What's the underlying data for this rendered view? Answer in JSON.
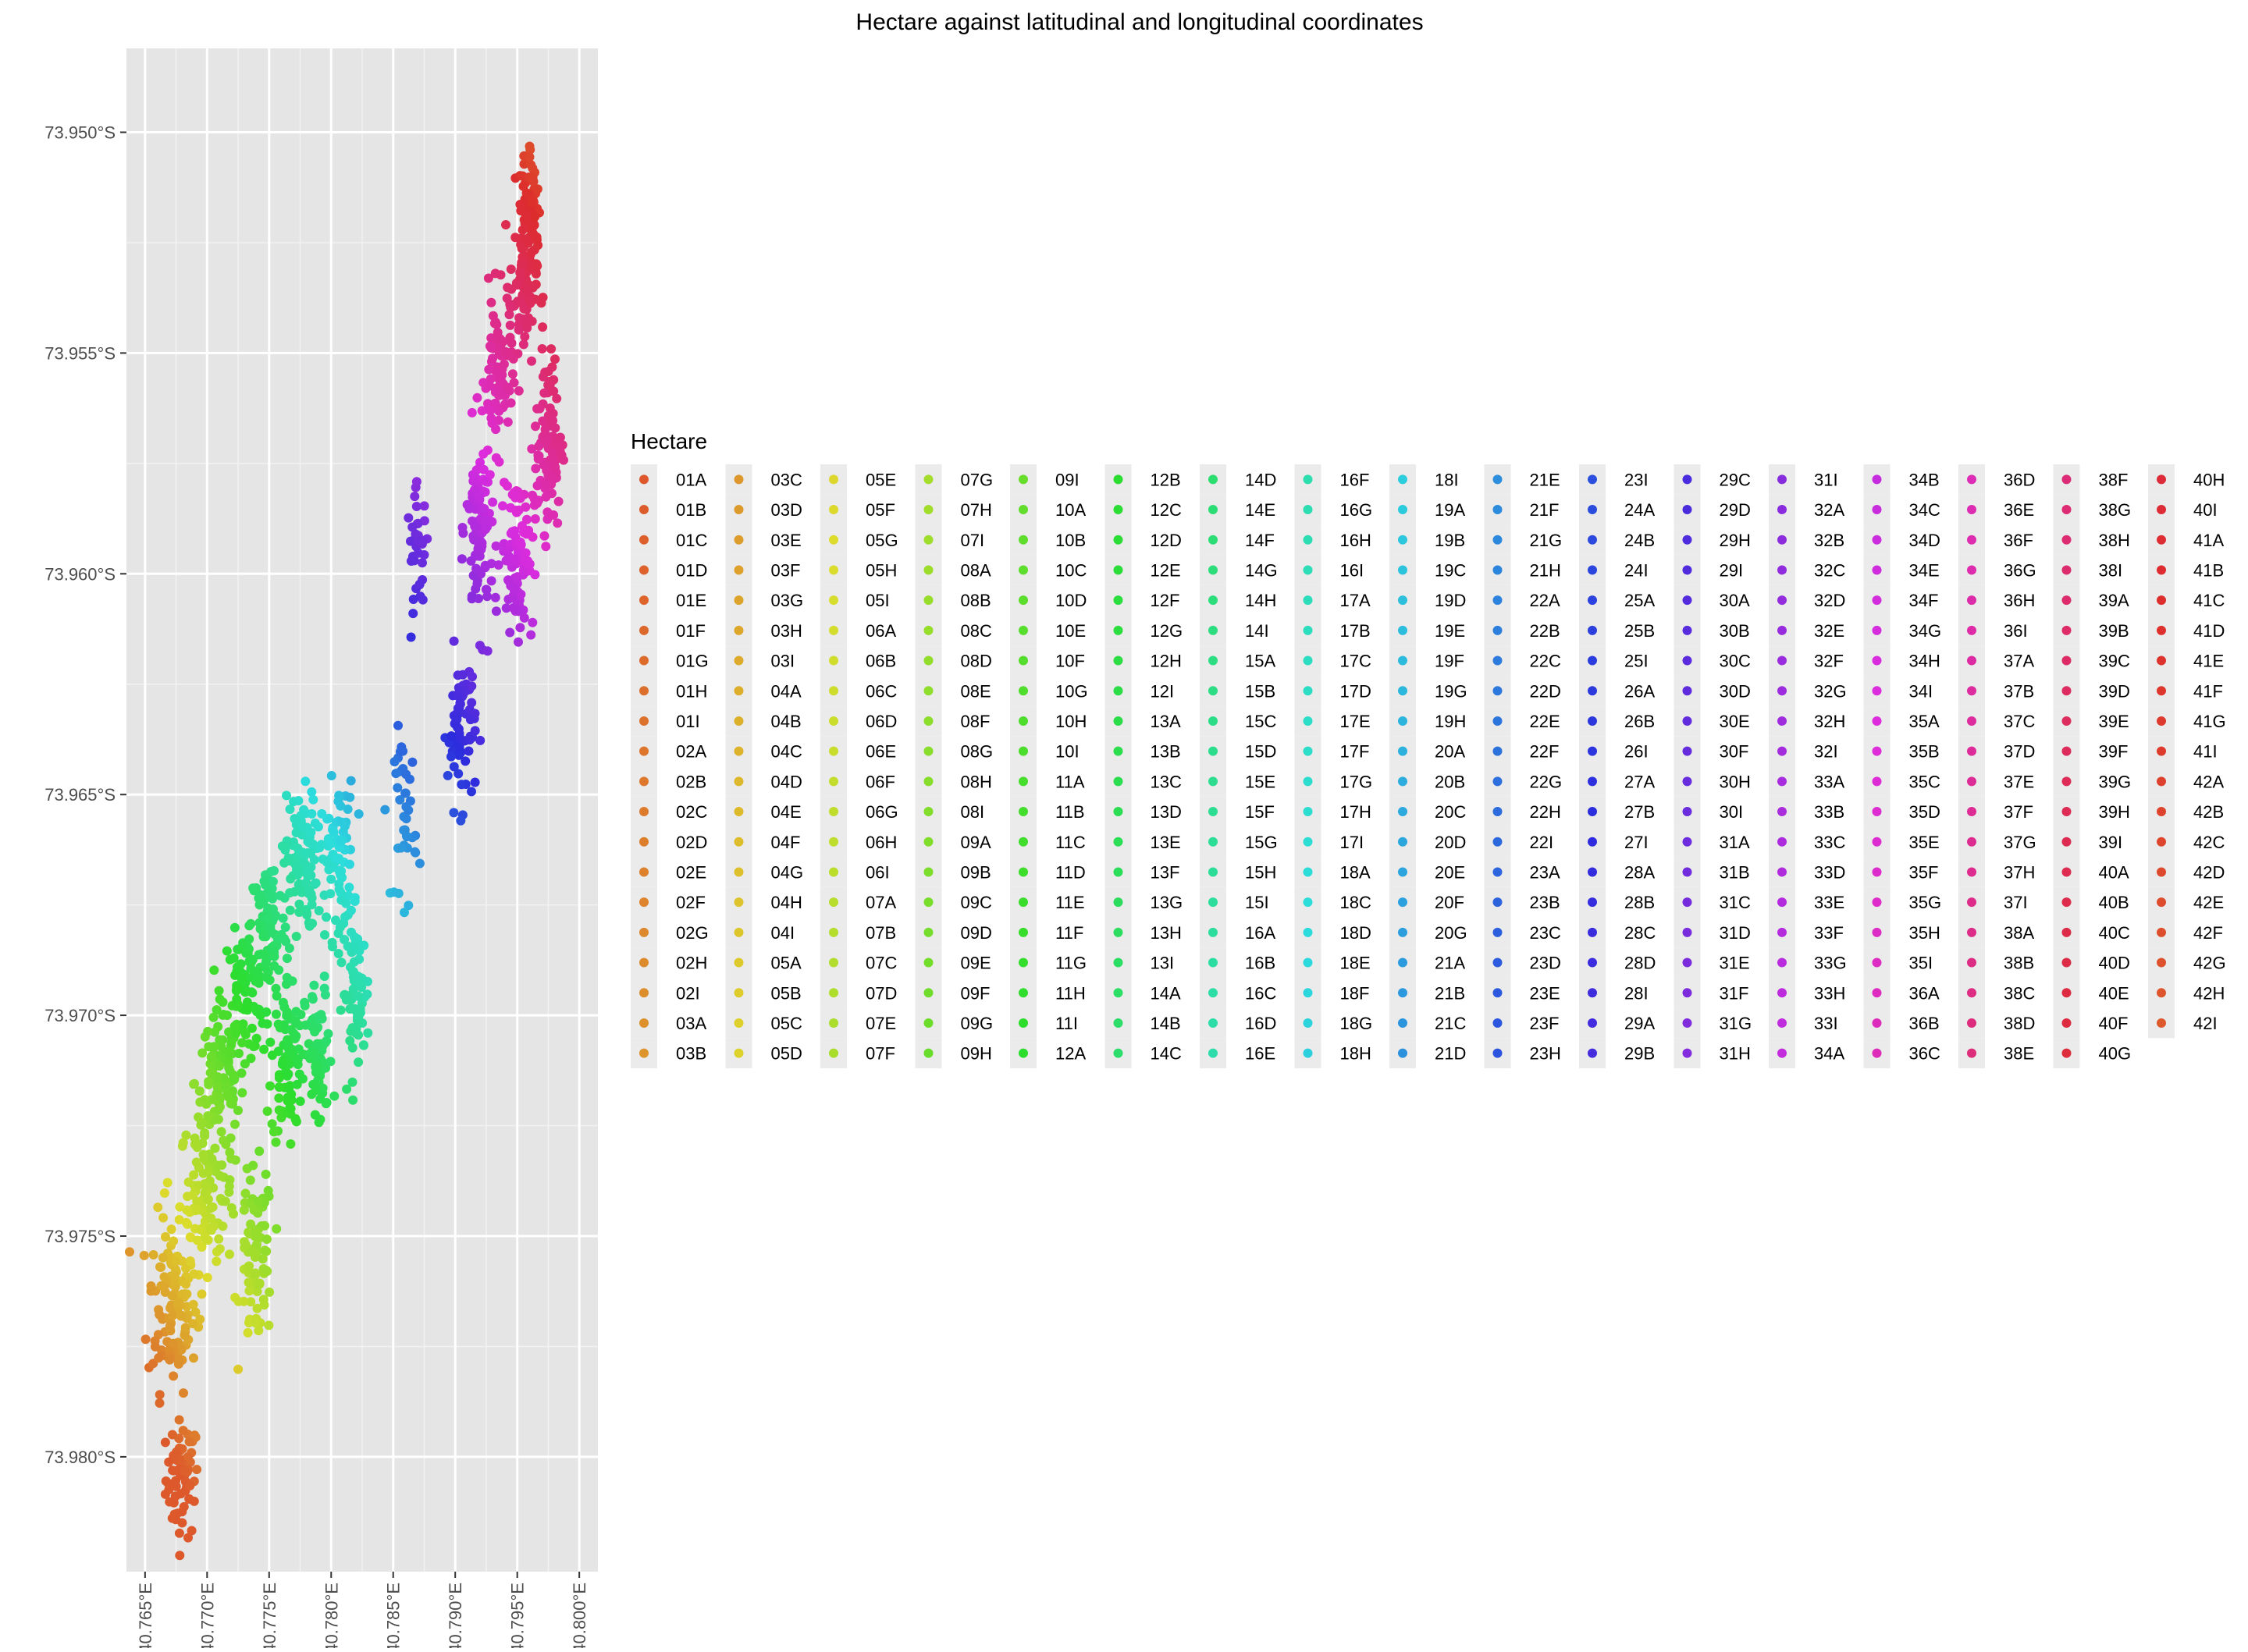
{
  "chart_data": {
    "type": "scatter",
    "title": "Hectare against latitudinal and longitudinal coordinates",
    "xlabel": "",
    "ylabel": "",
    "panel_background": "#e5e5e5",
    "grid_color": "#ffffff",
    "grid": true,
    "legend_position": "right",
    "xlim": [
      40.7635,
      40.8015
    ],
    "ylim": [
      -73.9826,
      -73.9481
    ],
    "x_ticks": [
      {
        "value": 40.765,
        "label": "40.765°E"
      },
      {
        "value": 40.77,
        "label": "40.770°E"
      },
      {
        "value": 40.775,
        "label": "40.775°E"
      },
      {
        "value": 40.78,
        "label": "40.780°E"
      },
      {
        "value": 40.785,
        "label": "40.785°E"
      },
      {
        "value": 40.79,
        "label": "40.790°E"
      },
      {
        "value": 40.795,
        "label": "40.795°E"
      },
      {
        "value": 40.8,
        "label": "40.800°E"
      }
    ],
    "y_ticks": [
      {
        "value": -73.95,
        "label": "73.950°S"
      },
      {
        "value": -73.955,
        "label": "73.955°S"
      },
      {
        "value": -73.96,
        "label": "73.960°S"
      },
      {
        "value": -73.965,
        "label": "73.965°S"
      },
      {
        "value": -73.97,
        "label": "73.970°S"
      },
      {
        "value": -73.975,
        "label": "73.975°S"
      },
      {
        "value": -73.98,
        "label": "73.980°S"
      }
    ],
    "legend": {
      "title": "Hectare",
      "rows_per_column": 20,
      "entries": [
        "01A",
        "01B",
        "01C",
        "01D",
        "01E",
        "01F",
        "01G",
        "01H",
        "01I",
        "02A",
        "02B",
        "02C",
        "02D",
        "02E",
        "02F",
        "02G",
        "02H",
        "02I",
        "03A",
        "03B",
        "03C",
        "03D",
        "03E",
        "03F",
        "03G",
        "03H",
        "03I",
        "04A",
        "04B",
        "04C",
        "04D",
        "04E",
        "04F",
        "04G",
        "04H",
        "04I",
        "05A",
        "05B",
        "05C",
        "05D",
        "05E",
        "05F",
        "05G",
        "05H",
        "05I",
        "06A",
        "06B",
        "06C",
        "06D",
        "06E",
        "06F",
        "06G",
        "06H",
        "06I",
        "07A",
        "07B",
        "07C",
        "07D",
        "07E",
        "07F",
        "07G",
        "07H",
        "07I",
        "08A",
        "08B",
        "08C",
        "08D",
        "08E",
        "08F",
        "08G",
        "08H",
        "08I",
        "09A",
        "09B",
        "09C",
        "09D",
        "09E",
        "09F",
        "09G",
        "09H",
        "09I",
        "10A",
        "10B",
        "10C",
        "10D",
        "10E",
        "10F",
        "10G",
        "10H",
        "10I",
        "11A",
        "11B",
        "11C",
        "11D",
        "11E",
        "11F",
        "11G",
        "11H",
        "11I",
        "12A",
        "12B",
        "12C",
        "12D",
        "12E",
        "12F",
        "12G",
        "12H",
        "12I",
        "13A",
        "13B",
        "13C",
        "13D",
        "13E",
        "13F",
        "13G",
        "13H",
        "13I",
        "14A",
        "14B",
        "14C",
        "14D",
        "14E",
        "14F",
        "14G",
        "14H",
        "14I",
        "15A",
        "15B",
        "15C",
        "15D",
        "15E",
        "15F",
        "15G",
        "15H",
        "15I",
        "16A",
        "16B",
        "16C",
        "16D",
        "16E",
        "16F",
        "16G",
        "16H",
        "16I",
        "17A",
        "17B",
        "17C",
        "17D",
        "17E",
        "17F",
        "17G",
        "17H",
        "17I",
        "18A",
        "18C",
        "18D",
        "18E",
        "18F",
        "18G",
        "18H",
        "18I",
        "19A",
        "19B",
        "19C",
        "19D",
        "19E",
        "19F",
        "19G",
        "19H",
        "20A",
        "20B",
        "20C",
        "20D",
        "20E",
        "20F",
        "20G",
        "21A",
        "21B",
        "21C",
        "21D",
        "21E",
        "21F",
        "21G",
        "21H",
        "22A",
        "22B",
        "22C",
        "22D",
        "22E",
        "22F",
        "22G",
        "22H",
        "22I",
        "23A",
        "23B",
        "23C",
        "23D",
        "23E",
        "23F",
        "23H",
        "23I",
        "24A",
        "24B",
        "24I",
        "25A",
        "25B",
        "25I",
        "26A",
        "26B",
        "26I",
        "27A",
        "27B",
        "27I",
        "28A",
        "28B",
        "28C",
        "28D",
        "28I",
        "29A",
        "29B",
        "29C",
        "29D",
        "29H",
        "29I",
        "30A",
        "30B",
        "30C",
        "30D",
        "30E",
        "30F",
        "30H",
        "30I",
        "31A",
        "31B",
        "31C",
        "31D",
        "31E",
        "31F",
        "31G",
        "31H",
        "31I",
        "32A",
        "32B",
        "32C",
        "32D",
        "32E",
        "32F",
        "32G",
        "32H",
        "32I",
        "33A",
        "33B",
        "33C",
        "33D",
        "33E",
        "33F",
        "33G",
        "33H",
        "33I",
        "34A",
        "34B",
        "34C",
        "34D",
        "34E",
        "34F",
        "34G",
        "34H",
        "34I",
        "35A",
        "35B",
        "35C",
        "35D",
        "35E",
        "35F",
        "35G",
        "35H",
        "35I",
        "36A",
        "36B",
        "36C",
        "36D",
        "36E",
        "36F",
        "36G",
        "36H",
        "36I",
        "37A",
        "37B",
        "37C",
        "37D",
        "37E",
        "37F",
        "37G",
        "37H",
        "37I",
        "38A",
        "38B",
        "38C",
        "38D",
        "38E",
        "38F",
        "38G",
        "38H",
        "38I",
        "39A",
        "39B",
        "39C",
        "39D",
        "39E",
        "39F",
        "39G",
        "39H",
        "39I",
        "40A",
        "40B",
        "40C",
        "40D",
        "40E",
        "40F",
        "40G",
        "40H",
        "40I",
        "41A",
        "41B",
        "41C",
        "41D",
        "41E",
        "41F",
        "41G",
        "41I",
        "42A",
        "42B",
        "42C",
        "42D",
        "42E",
        "42F",
        "42G",
        "42H",
        "42I"
      ]
    },
    "clusters": [
      {
        "x": 40.768,
        "y": -73.9805,
        "sx": 0.0012,
        "sy": 0.0012,
        "n": 70
      },
      {
        "x": 40.7672,
        "y": -73.9765,
        "sx": 0.0018,
        "sy": 0.0018,
        "n": 120
      },
      {
        "x": 40.77,
        "y": -73.974,
        "sx": 0.002,
        "sy": 0.0016,
        "n": 110
      },
      {
        "x": 40.771,
        "y": -73.9715,
        "sx": 0.0018,
        "sy": 0.0014,
        "n": 100
      },
      {
        "x": 40.774,
        "y": -73.9755,
        "sx": 0.0012,
        "sy": 0.0018,
        "n": 80
      },
      {
        "x": 40.773,
        "y": -73.9695,
        "sx": 0.0016,
        "sy": 0.0012,
        "n": 90
      },
      {
        "x": 40.775,
        "y": -73.968,
        "sx": 0.0014,
        "sy": 0.0014,
        "n": 90
      },
      {
        "x": 40.7765,
        "y": -73.971,
        "sx": 0.0012,
        "sy": 0.0018,
        "n": 90
      },
      {
        "x": 40.7775,
        "y": -73.9665,
        "sx": 0.0012,
        "sy": 0.0014,
        "n": 90
      },
      {
        "x": 40.779,
        "y": -73.971,
        "sx": 0.001,
        "sy": 0.0016,
        "n": 70
      },
      {
        "x": 40.7805,
        "y": -73.9665,
        "sx": 0.0012,
        "sy": 0.0016,
        "n": 80
      },
      {
        "x": 40.782,
        "y": -73.9695,
        "sx": 0.001,
        "sy": 0.0014,
        "n": 70
      },
      {
        "x": 40.786,
        "y": -73.9655,
        "sx": 0.0008,
        "sy": 0.0018,
        "n": 40
      },
      {
        "x": 40.787,
        "y": -73.9595,
        "sx": 0.0008,
        "sy": 0.0012,
        "n": 35
      },
      {
        "x": 40.7905,
        "y": -73.9635,
        "sx": 0.001,
        "sy": 0.0016,
        "n": 70
      },
      {
        "x": 40.792,
        "y": -73.959,
        "sx": 0.001,
        "sy": 0.002,
        "n": 100
      },
      {
        "x": 40.7935,
        "y": -73.9555,
        "sx": 0.001,
        "sy": 0.0016,
        "n": 80
      },
      {
        "x": 40.795,
        "y": -73.9595,
        "sx": 0.0012,
        "sy": 0.0016,
        "n": 100
      },
      {
        "x": 40.7955,
        "y": -73.9535,
        "sx": 0.001,
        "sy": 0.0016,
        "n": 90
      },
      {
        "x": 40.7975,
        "y": -73.957,
        "sx": 0.001,
        "sy": 0.0018,
        "n": 100
      },
      {
        "x": 40.796,
        "y": -73.9515,
        "sx": 0.0008,
        "sy": 0.0016,
        "n": 60
      }
    ]
  }
}
